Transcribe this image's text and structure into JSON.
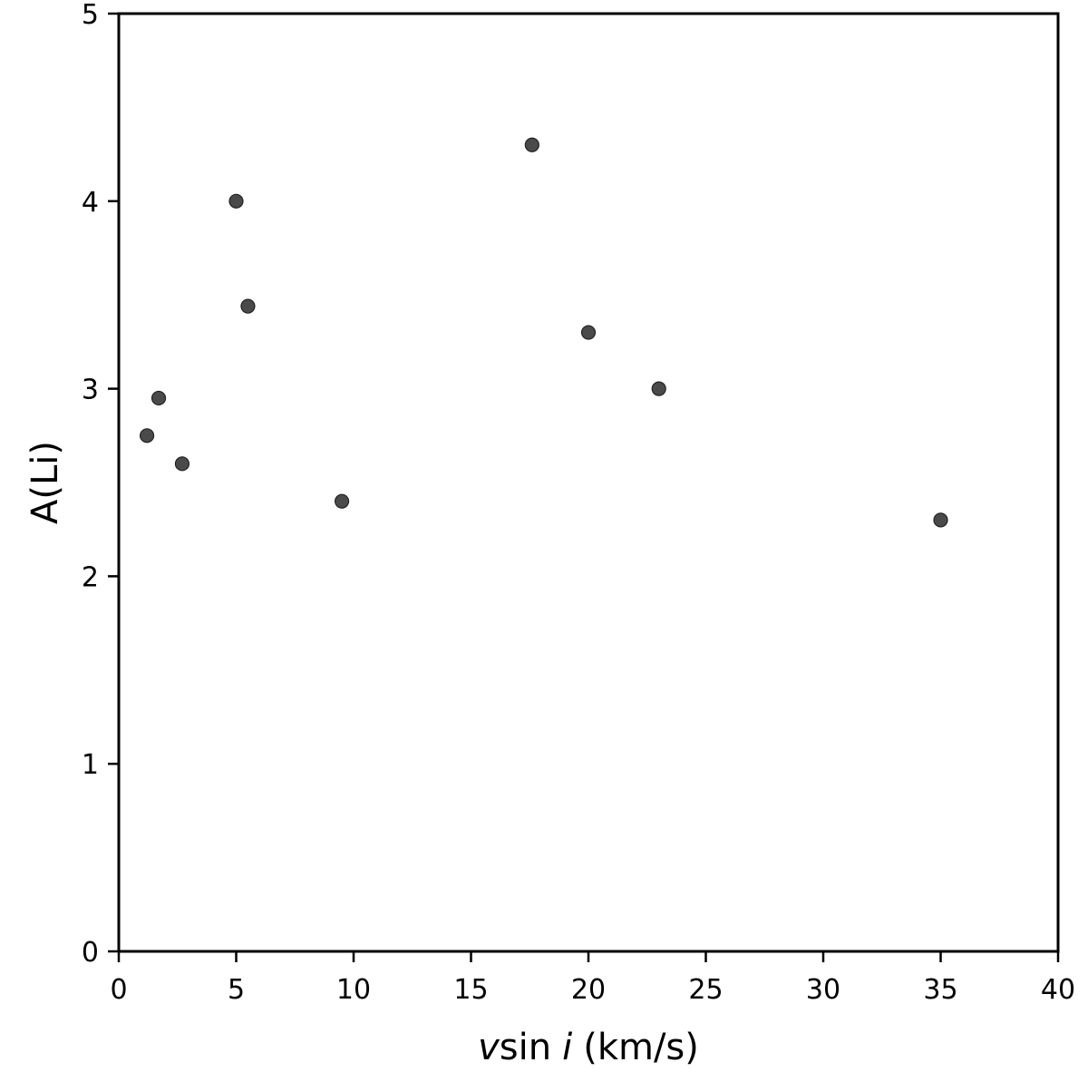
{
  "chart_data": {
    "type": "scatter",
    "title": "",
    "xlabel": {
      "var": "v",
      "func": "sin",
      "arg": "i",
      "unit": "(km/s)"
    },
    "ylabel": "A(Li)",
    "xlim": [
      0,
      40
    ],
    "ylim": [
      0,
      5
    ],
    "xticks": [
      0,
      5,
      10,
      15,
      20,
      25,
      30,
      35,
      40
    ],
    "yticks": [
      0,
      1,
      2,
      3,
      4,
      5
    ],
    "grid": false,
    "marker_color": "#4a4a4a",
    "marker_edge_color": "#222222",
    "points": [
      {
        "x": 1.2,
        "y": 2.75
      },
      {
        "x": 1.7,
        "y": 2.95
      },
      {
        "x": 2.7,
        "y": 2.6
      },
      {
        "x": 5.0,
        "y": 4.0
      },
      {
        "x": 5.5,
        "y": 3.44
      },
      {
        "x": 9.5,
        "y": 2.4
      },
      {
        "x": 17.6,
        "y": 4.3
      },
      {
        "x": 20.0,
        "y": 3.3
      },
      {
        "x": 23.0,
        "y": 3.0
      },
      {
        "x": 35.0,
        "y": 2.3
      }
    ]
  }
}
